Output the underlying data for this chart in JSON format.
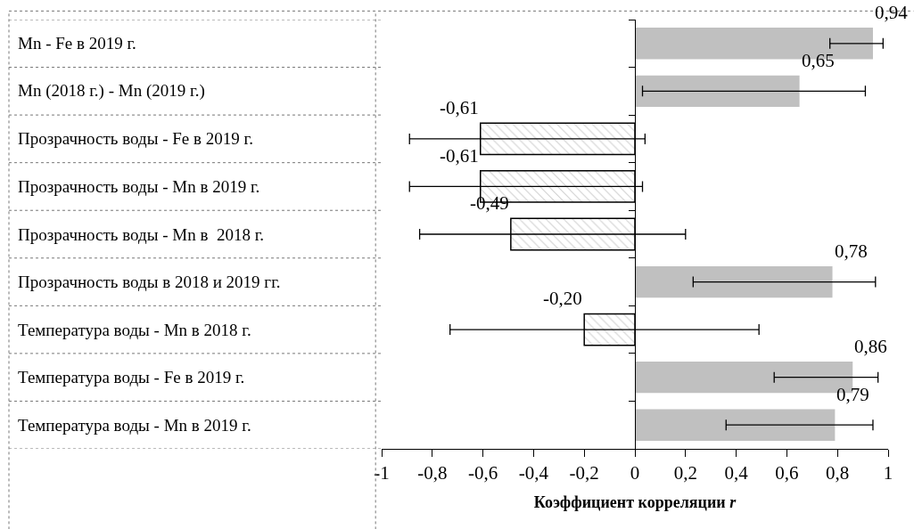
{
  "chart_data": {
    "type": "bar",
    "orientation": "horizontal",
    "xlabel": "Коэффициент корреляции r",
    "categories": [
      "Mn - Fe в 2019 г.",
      "Mn (2018 г.) - Mn (2019 г.)",
      "Прозрачность воды - Fe в 2019 г.",
      "Прозрачность воды - Mn в 2019 г.",
      "Прозрачность воды - Mn в  2018 г.",
      "Прозрачность воды в 2018 и 2019 гг.",
      "Температура воды - Mn в 2018 г.",
      "Температура воды - Fe в 2019 г.",
      "Температура воды - Mn в 2019 г."
    ],
    "series": [
      {
        "color": "#c0c0c0",
        "values": [
          0.94,
          0.65,
          null,
          null,
          null,
          0.78,
          null,
          0.86,
          0.79
        ],
        "value_labels": [
          "0,94",
          "0,65",
          null,
          null,
          null,
          "0,78",
          null,
          "0,86",
          "0,79"
        ],
        "errors": [
          [
            0.77,
            0.98
          ],
          [
            0.03,
            0.91
          ],
          null,
          null,
          null,
          [
            0.23,
            0.95
          ],
          null,
          [
            0.55,
            0.96
          ],
          [
            0.36,
            0.94
          ]
        ]
      },
      {
        "color": "#000000",
        "values": [
          null,
          null,
          -0.61,
          -0.61,
          -0.49,
          null,
          -0.2,
          null,
          null
        ],
        "value_labels": [
          null,
          null,
          "-0,61",
          "-0,61",
          "-0,49",
          null,
          "-0,20",
          null,
          null
        ],
        "errors": [
          null,
          null,
          [
            -0.89,
            0.04
          ],
          [
            -0.89,
            0.03
          ],
          [
            -0.85,
            0.2
          ],
          null,
          [
            -0.73,
            0.49
          ],
          null,
          null
        ]
      }
    ],
    "xlim": [
      -1,
      1
    ],
    "xticks": [
      -1,
      {
        "value": -0.8,
        "label": "-0,8"
      },
      {
        "value": -0.6,
        "label": "-0,6"
      },
      {
        "value": -0.4,
        "label": "-0,4"
      },
      {
        "value": -0.2,
        "label": "-0,2"
      },
      0,
      {
        "value": 0.2,
        "label": "0,2"
      },
      {
        "value": 0.4,
        "label": "0,4"
      },
      {
        "value": 0.6,
        "label": "0,6"
      },
      {
        "value": 0.8,
        "label": "0,8"
      },
      1
    ],
    "tick_labels": "x"
  }
}
